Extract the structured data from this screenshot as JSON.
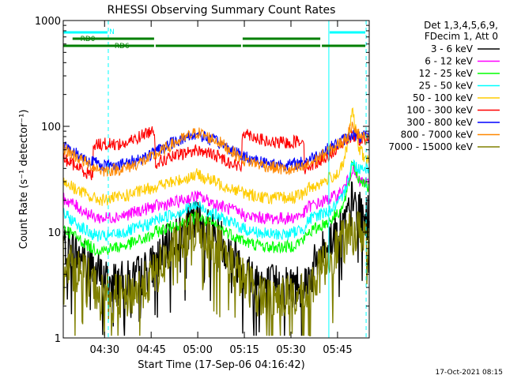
{
  "chart_data": {
    "type": "line",
    "title": "RHESSI Observing Summary Count Rates",
    "xlabel": "Start Time (17-Sep-06 04:16:42)",
    "ylabel": "Count Rate (s⁻¹ detector⁻¹)",
    "yscale": "log",
    "ylim": [
      1,
      1000
    ],
    "xlim_minutes": [
      0,
      98.5
    ],
    "x_ticks": [
      {
        "label": "04:30",
        "minute": 13.3
      },
      {
        "label": "04:45",
        "minute": 28.3
      },
      {
        "label": "05:00",
        "minute": 43.3
      },
      {
        "label": "05:15",
        "minute": 58.3
      },
      {
        "label": "05:30",
        "minute": 73.3
      },
      {
        "label": "05:45",
        "minute": 88.3
      }
    ],
    "y_ticks": [
      {
        "label": "1",
        "value": 1
      },
      {
        "label": "10",
        "value": 10
      },
      {
        "label": "100",
        "value": 100
      },
      {
        "label": "1000",
        "value": 1000
      }
    ],
    "grid": false,
    "legend": {
      "placement": "right",
      "header_lines": [
        "Det 1,3,4,5,6,9,",
        "FDecim 1, Att 0"
      ]
    },
    "series": [
      {
        "name": "3 - 6 keV",
        "color": "#000000",
        "minutes": [
          0,
          8,
          13,
          20,
          28,
          36,
          43,
          50,
          58,
          66,
          73,
          78,
          83,
          86,
          88,
          90,
          92,
          93,
          95,
          97,
          98.5
        ],
        "values": [
          8,
          5,
          3.5,
          3.2,
          4.5,
          9,
          13,
          9,
          4.5,
          3.1,
          3.1,
          3.3,
          6,
          9,
          10,
          12,
          14,
          20,
          15,
          14,
          14
        ]
      },
      {
        "name": "6 - 12 keV",
        "color": "#ff00ff",
        "minutes": [
          0,
          8,
          9.5,
          13,
          20,
          28,
          29.5,
          36,
          43,
          50,
          57.5,
          59,
          66,
          73,
          77.5,
          79,
          83,
          86,
          88,
          90,
          92,
          93,
          95,
          97,
          98.5
        ],
        "values": [
          21,
          15,
          14,
          13.5,
          14.5,
          17,
          17.5,
          19,
          22,
          18,
          15,
          14,
          13.5,
          13.5,
          15,
          17.5,
          19,
          21,
          22,
          25,
          32,
          40,
          30,
          30,
          28
        ]
      },
      {
        "name": "12 - 25 keV",
        "color": "#00ff00",
        "minutes": [
          0,
          8,
          9.5,
          13,
          20,
          28,
          29.5,
          36,
          43,
          50,
          57.5,
          59,
          66,
          73,
          77.5,
          79,
          83,
          86,
          88,
          90,
          92,
          93,
          95,
          97,
          98.5
        ],
        "values": [
          11,
          7.5,
          7,
          6.8,
          7.5,
          9,
          10,
          11.5,
          14,
          11,
          8.5,
          8,
          7.2,
          7.3,
          8.5,
          10,
          11.5,
          13,
          15,
          17,
          28,
          48,
          32,
          30,
          25
        ]
      },
      {
        "name": "25 - 50 keV",
        "color": "#00ffff",
        "minutes": [
          0,
          8,
          9.5,
          13,
          20,
          28,
          29.5,
          36,
          43,
          50,
          57.5,
          59,
          66,
          73,
          77.5,
          79,
          83,
          86,
          88,
          90,
          92,
          93,
          95,
          97,
          98.5
        ],
        "values": [
          15,
          10,
          9.5,
          9,
          10,
          12,
          13,
          15,
          18,
          14,
          11,
          10.5,
          9.5,
          9.6,
          11,
          13,
          15,
          16,
          18,
          21,
          35,
          45,
          40,
          42,
          40
        ]
      },
      {
        "name": "50 - 100 keV",
        "color": "#ffcc00",
        "minutes": [
          0,
          8,
          9.5,
          13,
          20,
          28,
          29.5,
          36,
          43,
          50,
          57.5,
          59,
          66,
          73,
          77.5,
          79,
          83,
          86,
          88,
          90,
          92,
          93,
          95,
          97,
          98.5
        ],
        "values": [
          30,
          22,
          21,
          20,
          22,
          26,
          27,
          30,
          35,
          29,
          24,
          23,
          21,
          21,
          23,
          26,
          29,
          33,
          35,
          42,
          80,
          145,
          65,
          50,
          48
        ]
      },
      {
        "name": "100 - 300 keV",
        "color": "#ff0000",
        "minutes": [
          0,
          8,
          9.5,
          9.6,
          13,
          20,
          28,
          29.5,
          29.6,
          36,
          43,
          50,
          57.5,
          57.6,
          66,
          73,
          77.5,
          77.6,
          83,
          86,
          88,
          90,
          92,
          93,
          95,
          97,
          98.5
        ],
        "values": [
          50,
          36,
          34,
          68,
          68,
          68,
          90,
          92,
          45,
          52,
          60,
          52,
          40,
          90,
          70,
          70,
          75,
          40,
          48,
          55,
          62,
          70,
          78,
          80,
          75,
          75,
          75
        ]
      },
      {
        "name": "300 - 800 keV",
        "color": "#0000ff",
        "minutes": [
          0,
          8,
          13,
          20,
          28,
          36,
          43,
          50,
          58,
          66,
          73,
          77.5,
          83,
          86,
          88,
          90,
          92,
          93,
          95,
          97,
          98.5
        ],
        "values": [
          65,
          48,
          43,
          44,
          54,
          72,
          85,
          70,
          52,
          45,
          43,
          46,
          56,
          63,
          68,
          74,
          80,
          86,
          78,
          80,
          78
        ]
      },
      {
        "name": "800 - 7000 keV",
        "color": "#ff8800",
        "minutes": [
          0,
          8,
          13,
          20,
          28,
          36,
          43,
          50,
          58,
          66,
          73,
          77.5,
          83,
          86,
          88,
          90,
          92,
          93,
          95,
          97,
          98.5
        ],
        "values": [
          62,
          44,
          38,
          40,
          50,
          70,
          88,
          72,
          48,
          42,
          38,
          41,
          52,
          60,
          65,
          72,
          85,
          110,
          85,
          78,
          74
        ]
      },
      {
        "name": "7000 - 15000 keV",
        "color": "#808000",
        "minutes": [
          0,
          8,
          13,
          20,
          28,
          36,
          43,
          50,
          58,
          66,
          73,
          78,
          83,
          86,
          88,
          90,
          92,
          93,
          95,
          97,
          98.5
        ],
        "values": [
          6,
          3.5,
          2.5,
          2.4,
          3.5,
          7,
          11,
          7.5,
          3.5,
          2.4,
          2.4,
          2.5,
          4.5,
          6,
          7,
          8,
          9,
          10,
          10,
          10,
          10
        ]
      }
    ],
    "annotations": [
      {
        "label": "N",
        "color": "#00ffff",
        "segments_minutes": [
          [
            0,
            14.5
          ],
          [
            85.5,
            97.5
          ]
        ]
      },
      {
        "label": "RD0",
        "color": "#007f00",
        "segments_minutes": [
          [
            3,
            29.5
          ],
          [
            57.5,
            83
          ]
        ]
      },
      {
        "label": "RD6",
        "color": "#007f00",
        "segments_minutes": [
          [
            0,
            29.5
          ],
          [
            29.5,
            57.5
          ],
          [
            57.5,
            83
          ],
          [
            83,
            97.5
          ]
        ]
      }
    ],
    "vertical_lines": [
      {
        "minute": 0,
        "style": "solid",
        "color": "#00ffff"
      },
      {
        "minute": 14.5,
        "style": "dashed",
        "color": "#00ffff"
      },
      {
        "minute": 85.5,
        "style": "solid",
        "color": "#00ffff"
      },
      {
        "minute": 97.5,
        "style": "dashed",
        "color": "#00ffff"
      }
    ]
  },
  "footer_timestamp": "17-Oct-2021 08:15"
}
